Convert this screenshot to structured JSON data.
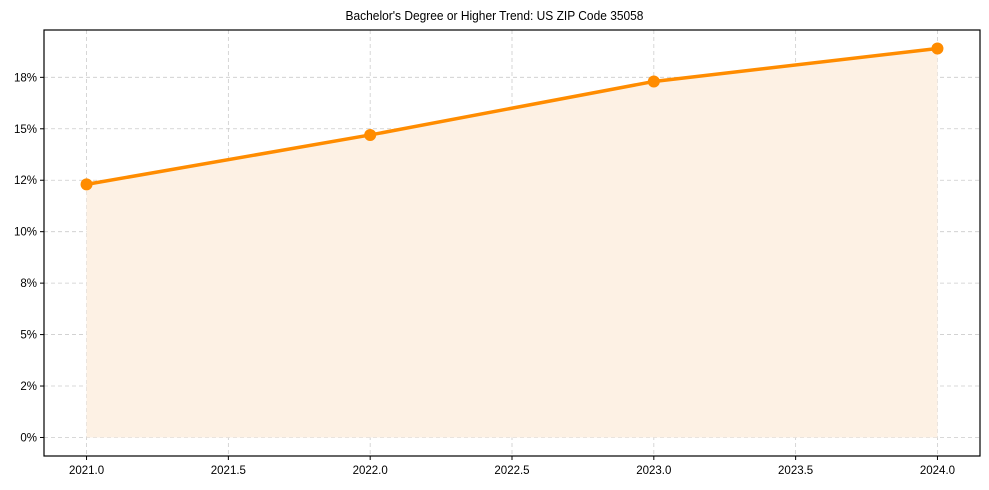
{
  "chart_data": {
    "type": "line",
    "title": "Bachelor's Degree or Higher Trend: US ZIP Code 35058",
    "xlabel": "",
    "ylabel": "",
    "x": [
      2021,
      2022,
      2023,
      2024
    ],
    "series": [
      {
        "name": "Bachelor's Degree or Higher",
        "values": [
          12.3,
          14.7,
          17.3,
          18.9
        ],
        "color": "#ff8c00",
        "marker": "circle",
        "fill_to_zero": true,
        "fill_color": "#fdf1e4"
      }
    ],
    "x_ticks": [
      "2021.0",
      "2021.5",
      "2022.0",
      "2022.5",
      "2023.0",
      "2023.5",
      "2024.0"
    ],
    "x_tick_values": [
      2021.0,
      2021.5,
      2022.0,
      2022.5,
      2023.0,
      2023.5,
      2024.0
    ],
    "y_ticks": [
      "0%",
      "2%",
      "5%",
      "8%",
      "10%",
      "12%",
      "15%",
      "18%"
    ],
    "y_tick_values": [
      0,
      2.5,
      5,
      7.5,
      10,
      12.5,
      15,
      17.5
    ],
    "xlim": [
      2020.85,
      2024.15
    ],
    "ylim": [
      -0.9,
      19.8
    ],
    "grid": true,
    "grid_style": "dashed",
    "legend": null
  }
}
